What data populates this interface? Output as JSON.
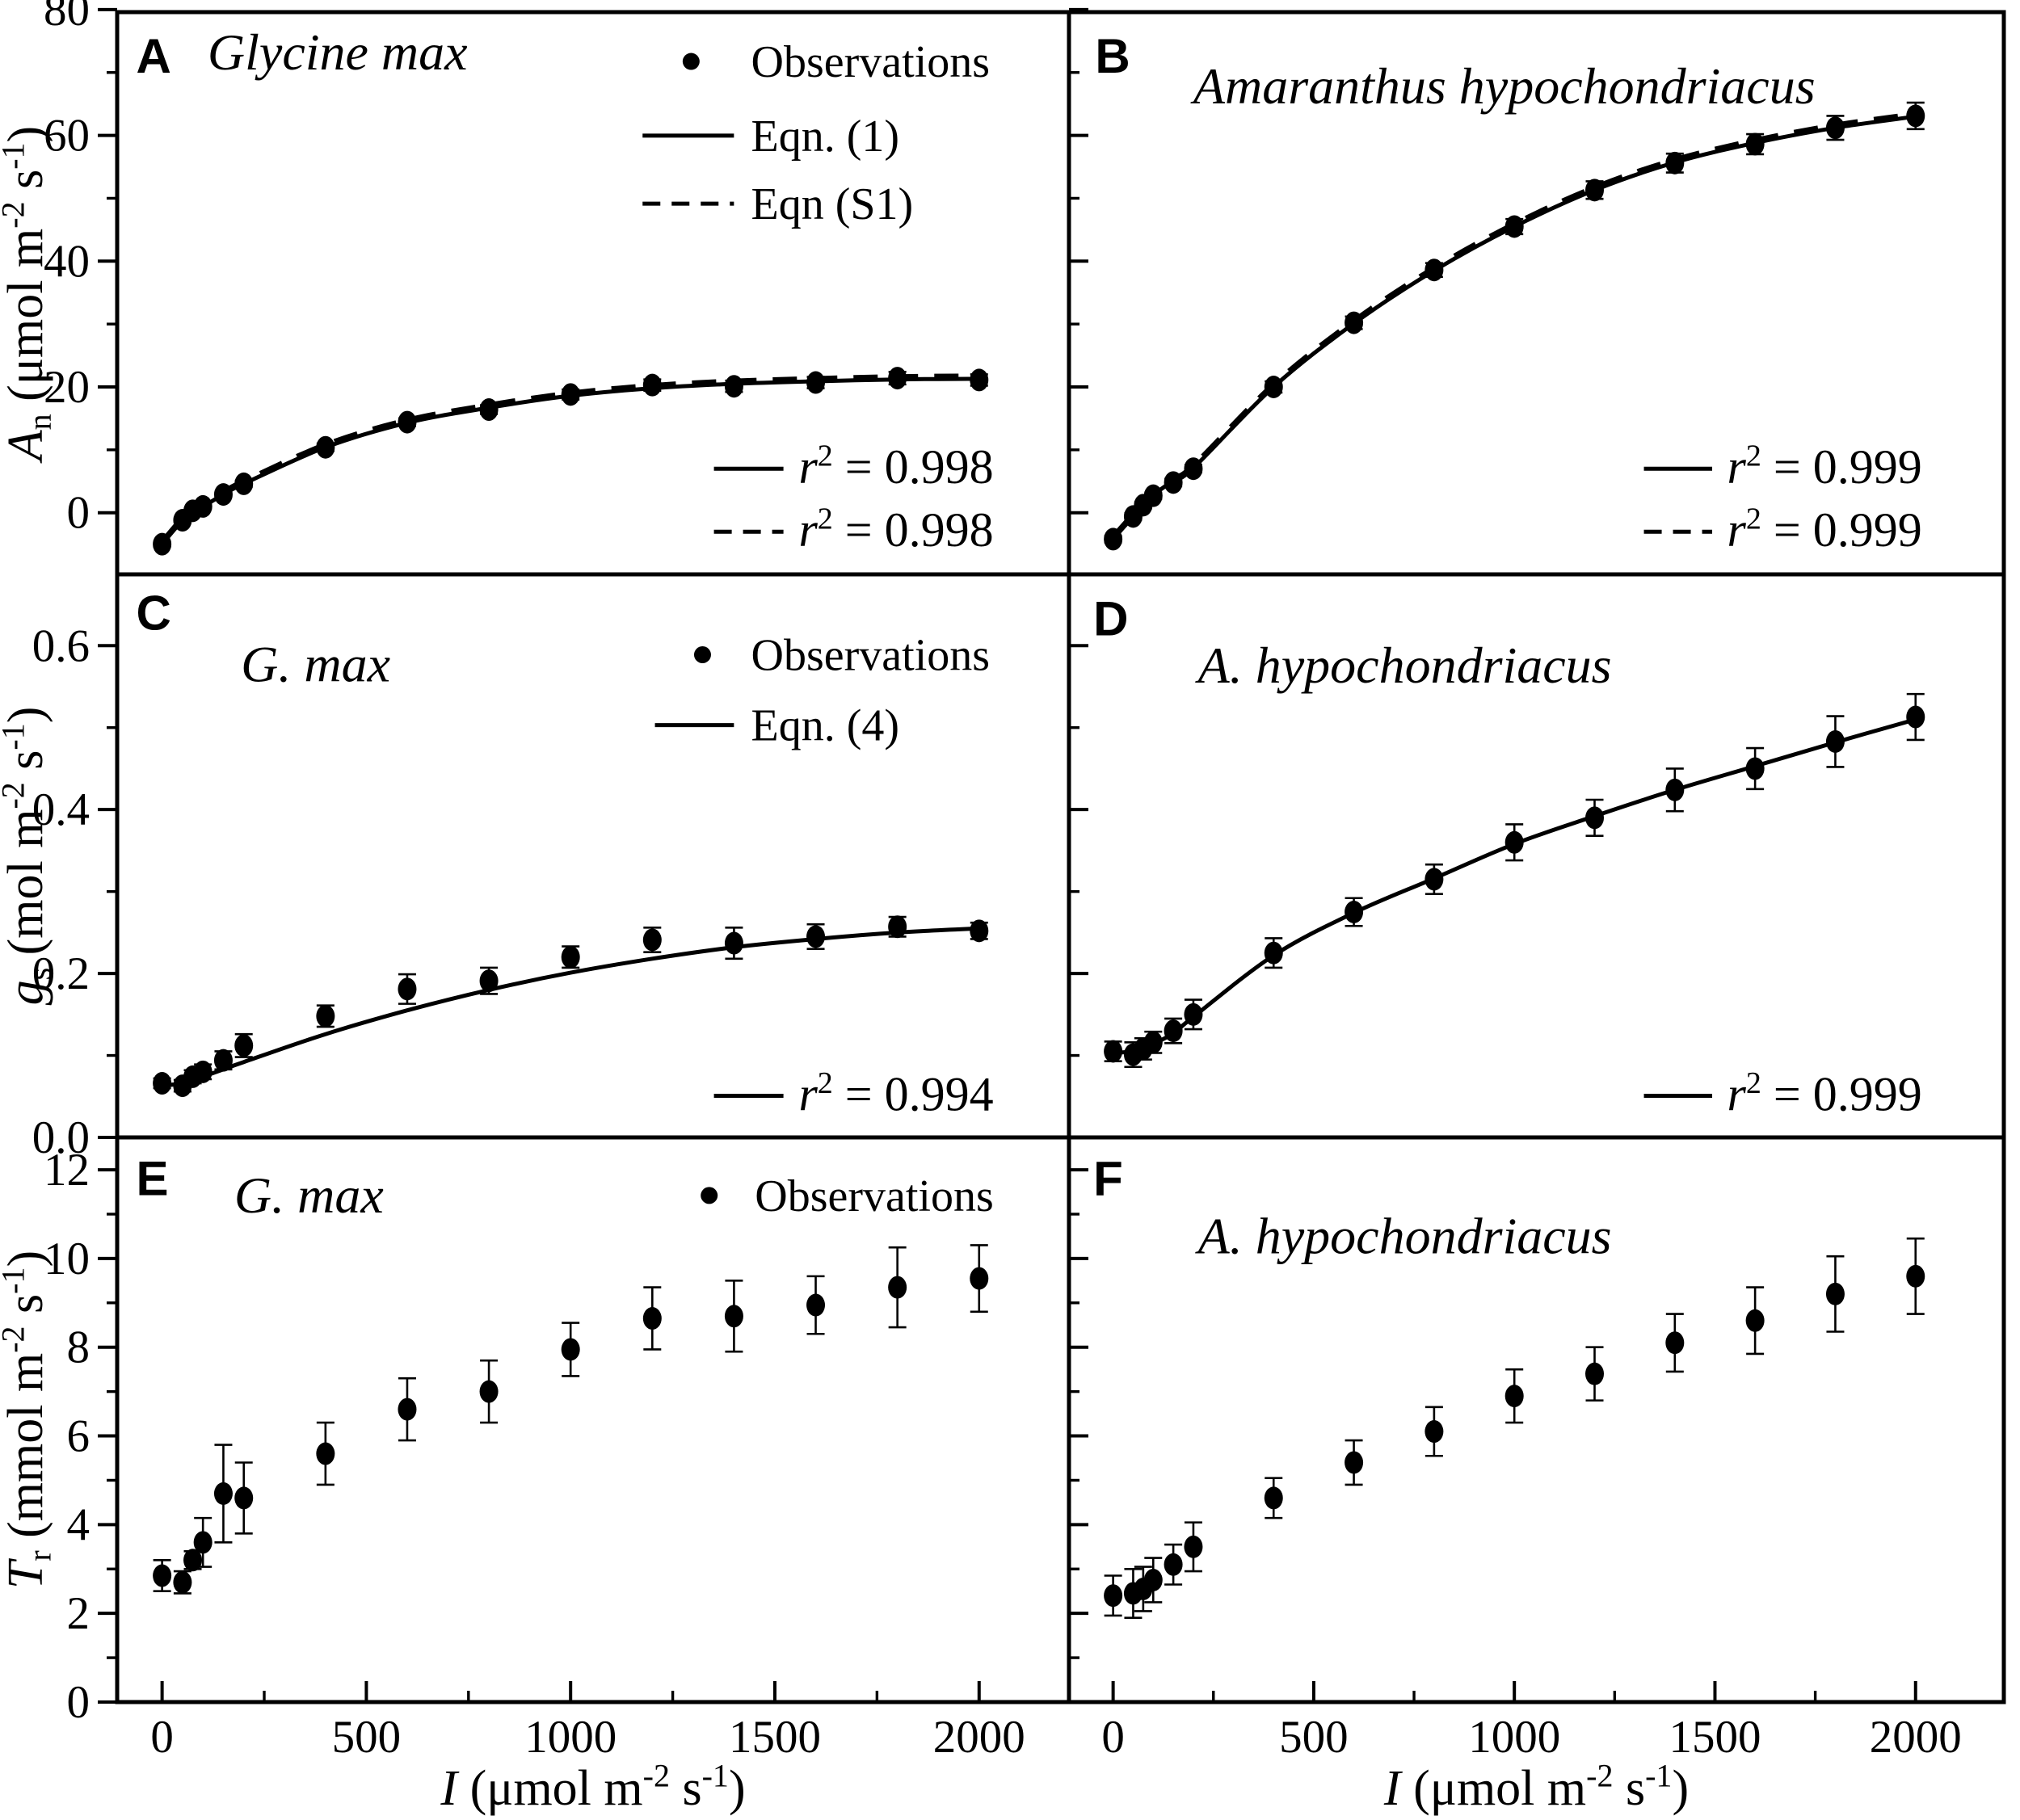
{
  "colors": {
    "ink": "#000000",
    "background": "#ffffff"
  },
  "chart_data": {
    "type": "scatter",
    "description": "Six-panel light response figure: net photosynthesis, stomatal conductance and transpiration versus irradiance for two species",
    "x_axis": {
      "title_parts": [
        {
          "t": "I",
          "s": "i"
        },
        {
          "t": " (μmol m",
          "s": "n"
        },
        {
          "t": "-2",
          "s": "sup"
        },
        {
          "t": " s",
          "s": "n"
        },
        {
          "t": "-1",
          "s": "sup"
        },
        {
          "t": ")",
          "s": "n"
        }
      ],
      "tick_labels": [
        "0",
        "500",
        "1000",
        "1500",
        "2000"
      ],
      "tick_values": [
        0,
        500,
        1000,
        1500,
        2000
      ],
      "minor_values": [
        250,
        750,
        1250,
        1750
      ],
      "min": -110,
      "max": 2220
    },
    "y_axes": [
      {
        "title_parts": [
          {
            "t": "A",
            "s": "i"
          },
          {
            "t": "n",
            "s": "sub"
          },
          {
            "t": " (μmol m",
            "s": "n"
          },
          {
            "t": "-2",
            "s": "sup"
          },
          {
            "t": " s",
            "s": "n"
          },
          {
            "t": "-1",
            "s": "sup"
          },
          {
            "t": ")",
            "s": "n"
          }
        ],
        "tick_labels": [
          "0",
          "20",
          "40",
          "60",
          "80"
        ],
        "tick_values": [
          0,
          20,
          40,
          60,
          80
        ],
        "minor_values": [
          10,
          30,
          50,
          70
        ],
        "min": -9.8,
        "max": 79.6
      },
      {
        "title_parts": [
          {
            "t": "g",
            "s": "i"
          },
          {
            "t": "s",
            "s": "sub"
          },
          {
            "t": " (mol m",
            "s": "n"
          },
          {
            "t": "-2",
            "s": "sup"
          },
          {
            "t": " s",
            "s": "n"
          },
          {
            "t": "-1",
            "s": "sup"
          },
          {
            "t": ")",
            "s": "n"
          }
        ],
        "tick_labels": [
          "0.0",
          "0.2",
          "0.4",
          "0.6"
        ],
        "tick_values": [
          0,
          0.2,
          0.4,
          0.6
        ],
        "minor_values": [
          0.1,
          0.3,
          0.5
        ],
        "min": 0,
        "max": 0.687
      },
      {
        "title_parts": [
          {
            "t": "T",
            "s": "i"
          },
          {
            "t": "r",
            "s": "sub"
          },
          {
            "t": " (mmol m",
            "s": "n"
          },
          {
            "t": "-2",
            "s": "sup"
          },
          {
            "t": " s",
            "s": "n"
          },
          {
            "t": "-1",
            "s": "sup"
          },
          {
            "t": ")",
            "s": "n"
          }
        ],
        "tick_labels": [
          "0",
          "2",
          "4",
          "6",
          "8",
          "10",
          "12"
        ],
        "tick_values": [
          0,
          2,
          4,
          6,
          8,
          10,
          12
        ],
        "minor_values": [
          1,
          3,
          5,
          7,
          9,
          11
        ],
        "min": 0,
        "max": 12.73
      }
    ],
    "x": [
      0,
      50,
      75,
      100,
      150,
      200,
      400,
      600,
      800,
      1000,
      1200,
      1400,
      1600,
      1800,
      2000
    ],
    "panels": [
      {
        "id": "A",
        "letter": "A",
        "row": 0,
        "col": 0,
        "title": "Glycine max",
        "legend": [
          {
            "glyph": "dot",
            "label": "Observations"
          },
          {
            "glyph": "solid",
            "label": "Eqn. (1)"
          },
          {
            "glyph": "dashed",
            "label": "Eqn (S1)"
          }
        ],
        "annotations": [
          {
            "glyph": "solid",
            "r2_value": "0.998"
          },
          {
            "glyph": "dashed",
            "r2_value": "0.998"
          }
        ],
        "y": [
          -5.0,
          -1.2,
          0.3,
          1.0,
          2.9,
          4.6,
          10.4,
          14.4,
          16.4,
          18.8,
          20.3,
          20.1,
          20.7,
          21.4,
          21.1
        ],
        "yerr": [
          0.4,
          0.4,
          0.4,
          0.4,
          0.4,
          0.5,
          0.6,
          0.6,
          0.7,
          0.8,
          0.9,
          0.9,
          0.9,
          1.0,
          0.9
        ],
        "curve_styles": [
          "solid",
          "dashed"
        ],
        "curve_y": [
          -5.0,
          -1.2,
          0.3,
          1.0,
          2.9,
          4.6,
          10.4,
          14.3,
          16.7,
          18.6,
          19.8,
          20.5,
          20.9,
          21.2,
          21.3
        ]
      },
      {
        "id": "B",
        "letter": "B",
        "row": 0,
        "col": 1,
        "title": "Amaranthus hypochondriacus",
        "legend": [],
        "annotations": [
          {
            "glyph": "solid",
            "r2_value": "0.999"
          },
          {
            "glyph": "dashed",
            "r2_value": "0.999"
          }
        ],
        "y": [
          -4.2,
          -0.6,
          1.2,
          2.7,
          4.8,
          7.0,
          20.0,
          30.2,
          38.6,
          45.5,
          51.3,
          55.6,
          58.6,
          61.2,
          63.1
        ],
        "yerr": [
          0.5,
          0.5,
          0.5,
          0.5,
          0.6,
          0.6,
          0.9,
          1.0,
          1.1,
          1.2,
          1.4,
          1.5,
          1.6,
          1.9,
          2.1
        ],
        "curve_styles": [
          "solid",
          "dashed"
        ],
        "curve_y": [
          -4.2,
          -0.6,
          1.2,
          2.8,
          5.1,
          7.1,
          20.0,
          30.1,
          38.5,
          45.5,
          51.3,
          55.7,
          58.8,
          61.2,
          63.0
        ]
      },
      {
        "id": "C",
        "letter": "C",
        "row": 1,
        "col": 0,
        "title": "G. max",
        "legend": [
          {
            "glyph": "dot",
            "label": "Observations"
          },
          {
            "glyph": "solid",
            "label": "Eqn. (4)"
          }
        ],
        "annotations": [
          {
            "glyph": "solid",
            "r2_value": "0.994"
          }
        ],
        "y": [
          0.066,
          0.063,
          0.074,
          0.08,
          0.094,
          0.112,
          0.148,
          0.181,
          0.191,
          0.22,
          0.241,
          0.237,
          0.245,
          0.257,
          0.252
        ],
        "yerr": [
          0.006,
          0.007,
          0.008,
          0.009,
          0.011,
          0.014,
          0.013,
          0.018,
          0.016,
          0.013,
          0.015,
          0.019,
          0.015,
          0.012,
          0.01
        ],
        "curve_styles": [
          "solid"
        ],
        "curve_y": [
          0.063,
          0.066,
          0.07,
          0.074,
          0.083,
          0.092,
          0.126,
          0.155,
          0.18,
          0.201,
          0.218,
          0.232,
          0.242,
          0.25,
          0.255
        ]
      },
      {
        "id": "D",
        "letter": "D",
        "row": 1,
        "col": 1,
        "title": "A. hypochondriacus",
        "legend": [],
        "annotations": [
          {
            "glyph": "solid",
            "r2_value": "0.999"
          }
        ],
        "y": [
          0.105,
          0.101,
          0.108,
          0.116,
          0.13,
          0.15,
          0.225,
          0.275,
          0.315,
          0.36,
          0.39,
          0.424,
          0.45,
          0.483,
          0.513
        ],
        "yerr": [
          0.012,
          0.015,
          0.013,
          0.013,
          0.015,
          0.018,
          0.018,
          0.017,
          0.018,
          0.022,
          0.022,
          0.026,
          0.025,
          0.031,
          0.028
        ],
        "curve_styles": [
          "solid"
        ],
        "curve_y": [
          0.103,
          0.105,
          0.109,
          0.114,
          0.127,
          0.147,
          0.222,
          0.274,
          0.316,
          0.358,
          0.392,
          0.424,
          0.453,
          0.482,
          0.51
        ]
      },
      {
        "id": "E",
        "letter": "E",
        "row": 2,
        "col": 0,
        "title": "G. max",
        "legend": [
          {
            "glyph": "dot",
            "label": "Observations"
          }
        ],
        "annotations": [],
        "y": [
          2.85,
          2.7,
          3.2,
          3.6,
          4.7,
          4.6,
          5.6,
          6.6,
          7.0,
          7.95,
          8.65,
          8.7,
          8.95,
          9.35,
          9.55
        ],
        "yerr": [
          0.35,
          0.25,
          0.2,
          0.55,
          1.1,
          0.8,
          0.7,
          0.7,
          0.7,
          0.6,
          0.7,
          0.8,
          0.65,
          0.9,
          0.75
        ],
        "curve_styles": [],
        "curve_y": []
      },
      {
        "id": "F",
        "letter": "F",
        "row": 2,
        "col": 1,
        "title": "A. hypochondriacus",
        "legend": [],
        "annotations": [],
        "y": [
          2.4,
          2.45,
          2.55,
          2.75,
          3.1,
          3.5,
          4.6,
          5.4,
          6.1,
          6.9,
          7.4,
          8.1,
          8.6,
          9.2,
          9.6
        ],
        "yerr": [
          0.45,
          0.55,
          0.5,
          0.5,
          0.45,
          0.55,
          0.45,
          0.5,
          0.55,
          0.6,
          0.6,
          0.65,
          0.75,
          0.85,
          0.85
        ],
        "curve_styles": [],
        "curve_y": []
      }
    ],
    "r2_prefix_parts": [
      {
        "t": "r",
        "s": "i"
      },
      {
        "t": "2",
        "s": "sup"
      },
      {
        "t": " = ",
        "s": "n"
      }
    ]
  }
}
